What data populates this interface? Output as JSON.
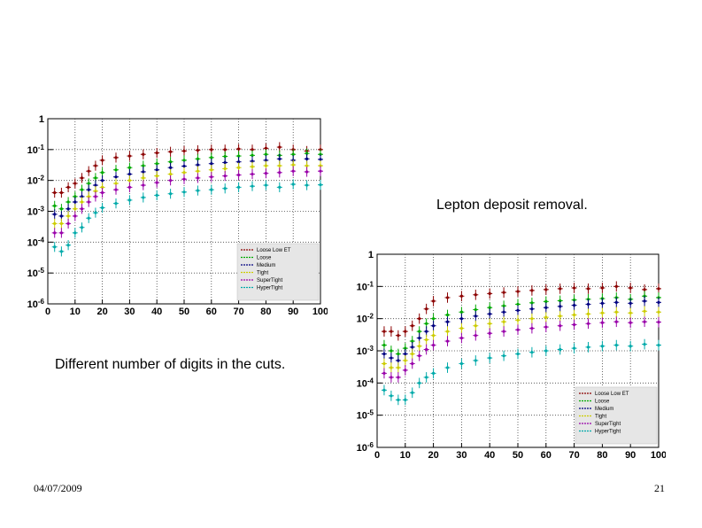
{
  "slide": {
    "caption_left": "Different number of digits in the cuts.",
    "caption_right": "Lepton deposit removal.",
    "date": "04/07/2009",
    "page_number": "21"
  },
  "chart_data": [
    {
      "type": "scatter",
      "title": "",
      "xlabel": "",
      "ylabel": "",
      "xlim": [
        0,
        100
      ],
      "ylim": [
        1e-06,
        1
      ],
      "yscale": "log",
      "grid": true,
      "legend_position": "bottom-right",
      "x_ticks": [
        "0",
        "10",
        "20",
        "30",
        "40",
        "50",
        "60",
        "70",
        "80",
        "90",
        "100"
      ],
      "y_ticks": [
        "1",
        "10^-1",
        "10^-2",
        "10^-3",
        "10^-4",
        "10^-5",
        "10^-6"
      ],
      "x": [
        2.5,
        5,
        7.5,
        10,
        12.5,
        15,
        17.5,
        20,
        25,
        30,
        35,
        40,
        45,
        50,
        55,
        60,
        65,
        70,
        75,
        80,
        85,
        90,
        95,
        100
      ],
      "series": [
        {
          "name": "Loose Low ET",
          "color": "#8b0000",
          "values": [
            0.004,
            0.004,
            0.006,
            0.008,
            0.012,
            0.02,
            0.03,
            0.045,
            0.055,
            0.062,
            0.07,
            0.078,
            0.085,
            0.09,
            0.095,
            0.1,
            0.1,
            0.105,
            0.1,
            0.11,
            0.12,
            0.1,
            0.09,
            0.1
          ]
        },
        {
          "name": "Loose",
          "color": "#00aa00",
          "values": [
            0.0015,
            0.0012,
            0.002,
            0.003,
            0.005,
            0.008,
            0.012,
            0.018,
            0.022,
            0.026,
            0.03,
            0.035,
            0.04,
            0.045,
            0.05,
            0.055,
            0.06,
            0.062,
            0.065,
            0.07,
            0.065,
            0.07,
            0.075,
            0.07
          ]
        },
        {
          "name": "Medium",
          "color": "#000080",
          "values": [
            0.0008,
            0.0007,
            0.0012,
            0.002,
            0.003,
            0.005,
            0.007,
            0.01,
            0.013,
            0.016,
            0.019,
            0.022,
            0.026,
            0.029,
            0.032,
            0.035,
            0.038,
            0.04,
            0.042,
            0.045,
            0.05,
            0.045,
            0.05,
            0.048
          ]
        },
        {
          "name": "Tight",
          "color": "#cccc00",
          "values": [
            0.0004,
            0.0004,
            0.0007,
            0.0012,
            0.002,
            0.003,
            0.0045,
            0.006,
            0.008,
            0.01,
            0.012,
            0.014,
            0.016,
            0.018,
            0.02,
            0.022,
            0.024,
            0.026,
            0.028,
            0.03,
            0.03,
            0.032,
            0.03,
            0.03
          ]
        },
        {
          "name": "SuperTight",
          "color": "#9900aa",
          "values": [
            0.0002,
            0.0002,
            0.0004,
            0.0007,
            0.0012,
            0.002,
            0.003,
            0.004,
            0.005,
            0.006,
            0.007,
            0.0085,
            0.01,
            0.011,
            0.012,
            0.013,
            0.014,
            0.015,
            0.016,
            0.017,
            0.018,
            0.02,
            0.019,
            0.02
          ]
        },
        {
          "name": "HyperTight",
          "color": "#00aaaa",
          "values": [
            7e-05,
            5e-05,
            8e-05,
            0.0002,
            0.0003,
            0.0006,
            0.0009,
            0.0013,
            0.0018,
            0.0023,
            0.0028,
            0.0033,
            0.0037,
            0.0042,
            0.0047,
            0.005,
            0.0055,
            0.006,
            0.0065,
            0.007,
            0.006,
            0.0075,
            0.007,
            0.0072
          ]
        }
      ]
    },
    {
      "type": "scatter",
      "title": "",
      "xlabel": "",
      "ylabel": "",
      "xlim": [
        0,
        100
      ],
      "ylim": [
        1e-06,
        1
      ],
      "yscale": "log",
      "grid": true,
      "legend_position": "bottom-right",
      "x_ticks": [
        "0",
        "10",
        "20",
        "30",
        "40",
        "50",
        "60",
        "70",
        "80",
        "90",
        "100"
      ],
      "y_ticks": [
        "1",
        "10^-1",
        "10^-2",
        "10^-3",
        "10^-4",
        "10^-5",
        "10^-6"
      ],
      "x": [
        2.5,
        5,
        7.5,
        10,
        12.5,
        15,
        17.5,
        20,
        25,
        30,
        35,
        40,
        45,
        50,
        55,
        60,
        65,
        70,
        75,
        80,
        85,
        90,
        95,
        100
      ],
      "series": [
        {
          "name": "Loose Low ET",
          "color": "#8b0000",
          "values": [
            0.004,
            0.004,
            0.003,
            0.004,
            0.006,
            0.01,
            0.02,
            0.035,
            0.045,
            0.05,
            0.055,
            0.06,
            0.065,
            0.07,
            0.075,
            0.08,
            0.085,
            0.09,
            0.085,
            0.09,
            0.1,
            0.09,
            0.08,
            0.085
          ]
        },
        {
          "name": "Loose",
          "color": "#00aa00",
          "values": [
            0.0015,
            0.001,
            0.0008,
            0.0012,
            0.002,
            0.004,
            0.007,
            0.01,
            0.013,
            0.016,
            0.019,
            0.022,
            0.025,
            0.028,
            0.031,
            0.034,
            0.036,
            0.038,
            0.04,
            0.042,
            0.045,
            0.04,
            0.05,
            0.045
          ]
        },
        {
          "name": "Medium",
          "color": "#000080",
          "values": [
            0.0008,
            0.0006,
            0.0005,
            0.0008,
            0.0013,
            0.0025,
            0.004,
            0.006,
            0.008,
            0.01,
            0.012,
            0.014,
            0.016,
            0.018,
            0.02,
            0.022,
            0.024,
            0.026,
            0.028,
            0.03,
            0.032,
            0.03,
            0.035,
            0.032
          ]
        },
        {
          "name": "Tight",
          "color": "#cccc00",
          "values": [
            0.0004,
            0.0003,
            0.0003,
            0.0005,
            0.0008,
            0.0014,
            0.0022,
            0.003,
            0.004,
            0.005,
            0.006,
            0.007,
            0.008,
            0.009,
            0.01,
            0.011,
            0.012,
            0.013,
            0.014,
            0.015,
            0.016,
            0.015,
            0.017,
            0.016
          ]
        },
        {
          "name": "SuperTight",
          "color": "#9900aa",
          "values": [
            0.0002,
            0.00015,
            0.00015,
            0.00025,
            0.0004,
            0.0007,
            0.0011,
            0.0015,
            0.002,
            0.0025,
            0.003,
            0.0035,
            0.004,
            0.0045,
            0.005,
            0.0055,
            0.006,
            0.0065,
            0.007,
            0.0075,
            0.008,
            0.0075,
            0.008,
            0.0078
          ]
        },
        {
          "name": "HyperTight",
          "color": "#00aaaa",
          "values": [
            6e-05,
            4e-05,
            3e-05,
            3e-05,
            5e-05,
            0.0001,
            0.00015,
            0.0002,
            0.0003,
            0.0004,
            0.0005,
            0.0006,
            0.0007,
            0.0008,
            0.0009,
            0.001,
            0.0011,
            0.0012,
            0.0013,
            0.0014,
            0.0015,
            0.0014,
            0.0016,
            0.0015
          ]
        }
      ]
    }
  ]
}
